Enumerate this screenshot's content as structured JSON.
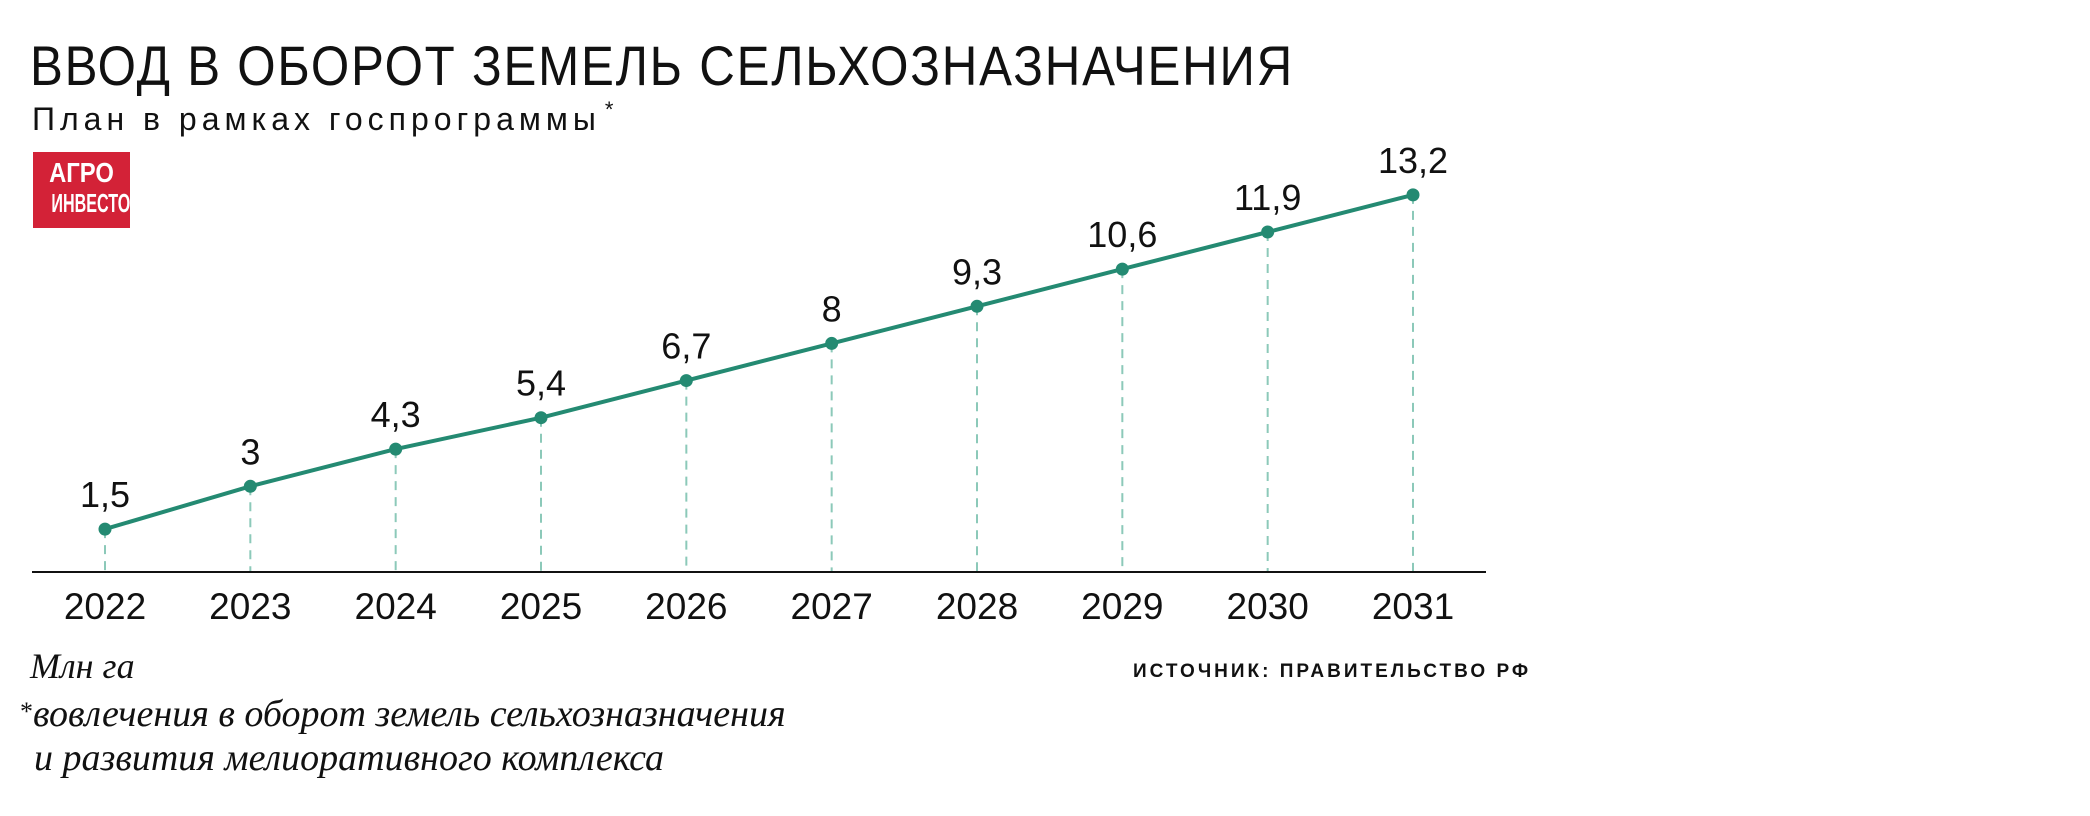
{
  "header": {
    "title": "ВВОД В ОБОРОТ ЗЕМЕЛЬ СЕЛЬХОЗНАЗНАЧЕНИЯ",
    "subtitle": "План в рамках госпрограммы",
    "subtitle_mark": "*"
  },
  "logo": {
    "line1": "АГРО",
    "line2": "ИНВЕСТОР",
    "color": "#d32237"
  },
  "chart_data": {
    "type": "line",
    "x": [
      "2022",
      "2023",
      "2024",
      "2025",
      "2026",
      "2027",
      "2028",
      "2029",
      "2030",
      "2031"
    ],
    "values": [
      1.5,
      3,
      4.3,
      5.4,
      6.7,
      8,
      9.3,
      10.6,
      11.9,
      13.2
    ],
    "data_labels": [
      "1,5",
      "3",
      "4,3",
      "5,4",
      "6,7",
      "8",
      "9,3",
      "10,6",
      "11,9",
      "13,2"
    ],
    "ylim": [
      0,
      14
    ],
    "grid": false,
    "drop_lines": true,
    "line_color": "#248a72",
    "drop_line_color": "#8cc9b9"
  },
  "footer": {
    "unit": "Млн га",
    "footnote_mark": "*",
    "footnote_line1": "вовлечения в оборот земель сельхозназначения",
    "footnote_line2": "и развития мелиоративного комплекса",
    "source": "ИСТОЧНИК: ПРАВИТЕЛЬСТВО РФ"
  }
}
